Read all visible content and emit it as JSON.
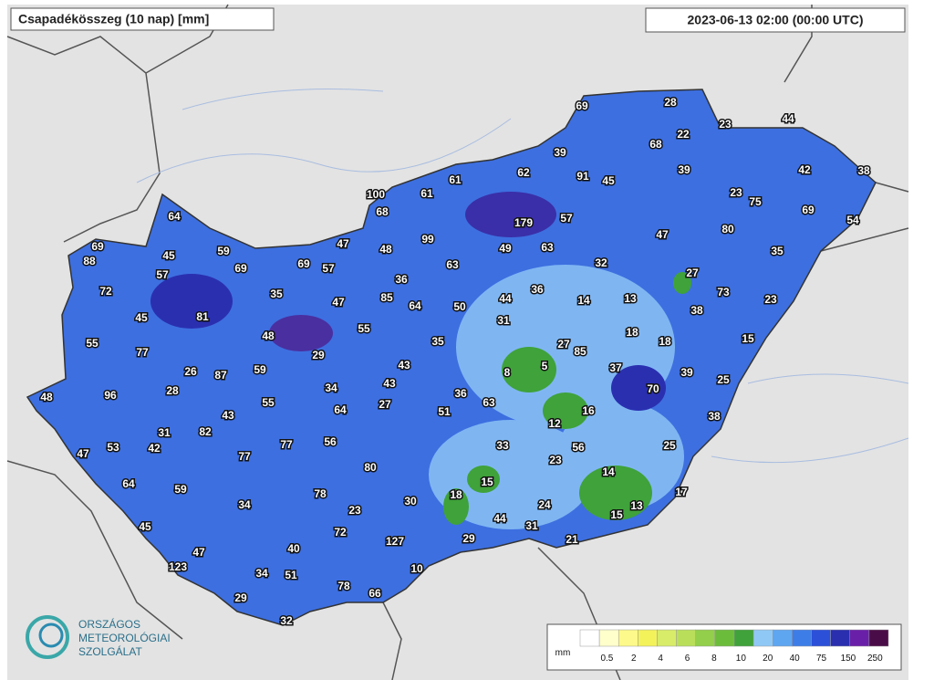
{
  "header": {
    "title": "Csapadékösszeg (10 nap) [mm]",
    "timestamp": "2023-06-13 02:00 (00:00 UTC)"
  },
  "stations": [
    69,
    28,
    23,
    44,
    22,
    68,
    39,
    62,
    91,
    45,
    39,
    42,
    38,
    61,
    100,
    61,
    23,
    75,
    69,
    54,
    68,
    179,
    57,
    64,
    99,
    47,
    80,
    69,
    88,
    45,
    59,
    47,
    48,
    49,
    63,
    35,
    69,
    69,
    57,
    63,
    32,
    27,
    57,
    36,
    72,
    35,
    47,
    85,
    64,
    50,
    44,
    36,
    14,
    13,
    73,
    23,
    45,
    81,
    38,
    55,
    31,
    48,
    18,
    18,
    15,
    55,
    77,
    35,
    27,
    85,
    29,
    43,
    37,
    39,
    25,
    26,
    87,
    59,
    8,
    5,
    28,
    34,
    43,
    70,
    48,
    96,
    36,
    63,
    55,
    27,
    64,
    51,
    16,
    43,
    38,
    12,
    31,
    82,
    56,
    77,
    33,
    56,
    25,
    47,
    53,
    42,
    77,
    23,
    80,
    14,
    15,
    64,
    59,
    17,
    78,
    18,
    30,
    34,
    23,
    24,
    13,
    15,
    44,
    31,
    45,
    72,
    127,
    29,
    21,
    47,
    40,
    123,
    10,
    34,
    51,
    78,
    66,
    29,
    32
  ],
  "logo": {
    "line1": "ORSZÁGOS",
    "line2": "METEOROLÓGIAI",
    "line3": "SZOLGÁLAT"
  },
  "legend": {
    "unit": "mm",
    "ticks": [
      0.5,
      2,
      4,
      6,
      8,
      10,
      20,
      40,
      75,
      150,
      250
    ],
    "colors": [
      "#ffffff",
      "#ffffcc",
      "#fdf98a",
      "#f4f25a",
      "#d8ec6a",
      "#b9df5a",
      "#93cf4a",
      "#6cbc3c",
      "#3fa23a",
      "#8fc8f5",
      "#5fa6f0",
      "#3d7de8",
      "#2c50d8",
      "#2a2fb0",
      "#6a1fa8",
      "#4a0c48"
    ]
  }
}
